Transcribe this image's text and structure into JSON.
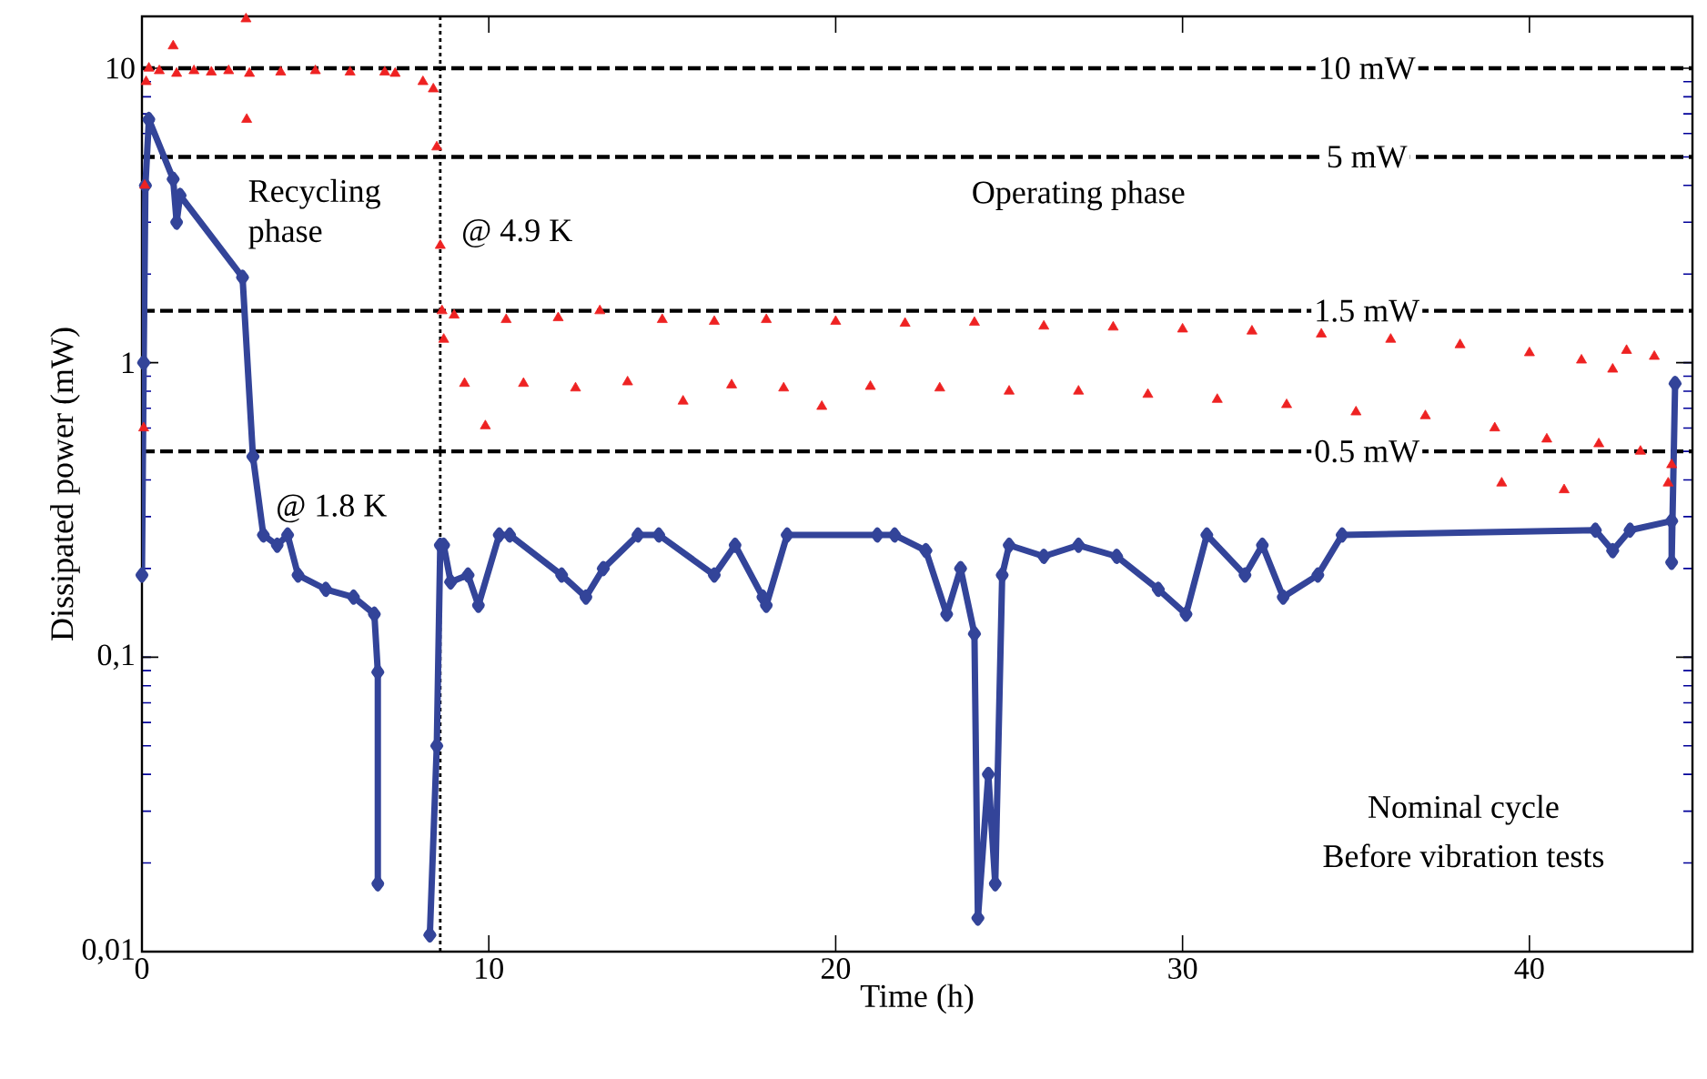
{
  "chart_data": {
    "type": "scatter",
    "xlabel": "Time (h)",
    "ylabel": "Dissipated power (mW)",
    "log": "y",
    "xlim": [
      0,
      44.7
    ],
    "ylim": [
      0.01,
      15
    ],
    "xticks": [
      0,
      10,
      20,
      30,
      40
    ],
    "yticks": [
      {
        "value": 0.01,
        "label": "0,01"
      },
      {
        "value": 0.1,
        "label": "0,1"
      },
      {
        "value": 1,
        "label": "1"
      },
      {
        "value": 10,
        "label": "10"
      }
    ],
    "series": [
      {
        "marker": "triangle",
        "color": "#ee2222",
        "x": [
          0.05,
          0.08,
          0.12,
          0.2,
          0.5,
          0.9,
          1.0,
          1.5,
          2.0,
          2.5,
          3.0,
          3.02,
          3.1,
          4,
          5,
          6,
          7,
          7.3,
          8.1,
          8.4,
          8.5,
          8.6,
          8.65,
          8.7,
          9,
          9.3,
          9.9,
          10.5,
          11,
          12,
          12.5,
          13.2,
          14,
          15,
          15.6,
          16.5,
          17,
          18,
          18.5,
          19.6,
          20,
          21,
          22,
          23,
          24,
          25,
          26,
          27,
          28,
          29,
          30,
          31,
          32,
          33,
          34,
          35,
          36,
          37,
          38,
          39,
          39.2,
          40,
          40.5,
          41,
          41.5,
          42,
          42.4,
          42.8,
          43.2,
          43.6,
          44,
          44.1
        ],
        "values": [
          0.6,
          4,
          9,
          10,
          9.8,
          11.9,
          9.6,
          9.8,
          9.7,
          9.8,
          14.7,
          6.7,
          9.6,
          9.7,
          9.8,
          9.7,
          9.7,
          9.6,
          9.0,
          8.5,
          5.4,
          2.5,
          1.5,
          1.2,
          1.45,
          0.85,
          0.61,
          1.4,
          0.85,
          1.42,
          0.82,
          1.5,
          0.86,
          1.4,
          0.74,
          1.38,
          0.84,
          1.4,
          0.82,
          0.71,
          1.38,
          0.83,
          1.36,
          0.82,
          1.37,
          0.8,
          1.33,
          0.8,
          1.32,
          0.78,
          1.3,
          0.75,
          1.28,
          0.72,
          1.25,
          0.68,
          1.2,
          0.66,
          1.15,
          0.6,
          0.39,
          1.08,
          0.55,
          0.37,
          1.02,
          0.53,
          0.95,
          1.1,
          0.5,
          1.05,
          0.39,
          0.45
        ]
      },
      {
        "type": "line",
        "marker": "diamond",
        "color": "#334499",
        "x": [
          0,
          0.05,
          0.1,
          0.2,
          0.9,
          1.0,
          1.1,
          2.9,
          3.2,
          3.5,
          3.9,
          4.2,
          4.5,
          5.3,
          6.1,
          6.7,
          6.8,
          6.8,
          7.5,
          8.3,
          8.5,
          8.6,
          8.7,
          8.9,
          9.4,
          9.7,
          10.3,
          10.6,
          12.1,
          12.8,
          13.3,
          14.3,
          14.9,
          16.5,
          17.1,
          17.9,
          18.0,
          18.6,
          21.2,
          21.7,
          22.6,
          23.2,
          23.6,
          24.0,
          24.1,
          24.4,
          24.6,
          24.8,
          25.0,
          26.0,
          27.0,
          28.1,
          29.3,
          30.1,
          30.7,
          31.8,
          32.3,
          32.9,
          33.9,
          34.6,
          41.9,
          42.4,
          42.9,
          44.1,
          44.1,
          44.2
        ],
        "values": [
          0.19,
          1,
          4,
          6.7,
          4.2,
          3.0,
          3.7,
          1.95,
          0.48,
          0.26,
          0.24,
          0.26,
          0.19,
          0.17,
          0.16,
          0.14,
          0.089,
          0.017,
          null,
          0.0114,
          0.05,
          0.24,
          0.24,
          0.18,
          0.19,
          0.15,
          0.26,
          0.26,
          0.19,
          0.16,
          0.2,
          0.26,
          0.26,
          0.19,
          0.24,
          0.16,
          0.15,
          0.26,
          0.26,
          0.26,
          0.23,
          0.14,
          0.2,
          0.12,
          0.013,
          0.04,
          0.017,
          0.19,
          0.24,
          0.22,
          0.24,
          0.22,
          0.17,
          0.14,
          0.26,
          0.19,
          0.24,
          0.16,
          0.19,
          0.26,
          0.27,
          0.23,
          0.27,
          0.29,
          0.21,
          0.85
        ]
      }
    ],
    "ref_lines": [
      {
        "axis": "y",
        "value": 10,
        "label": "10 mW",
        "line_style": "dashed"
      },
      {
        "axis": "y",
        "value": 5,
        "label": "5 mW",
        "line_style": "dashed"
      },
      {
        "axis": "y",
        "value": 1.5,
        "label": "1.5 mW",
        "line_style": "dashed"
      },
      {
        "axis": "y",
        "value": 0.5,
        "label": "0.5 mW",
        "line_style": "dashed"
      },
      {
        "axis": "x",
        "value": 8.6,
        "line_style": "dotted"
      }
    ],
    "annotations": [
      "Recycling phase",
      "@ 4.9 K",
      "Operating phase",
      "@ 1.8 K",
      "Nominal cycle",
      "Before vibration tests"
    ]
  }
}
